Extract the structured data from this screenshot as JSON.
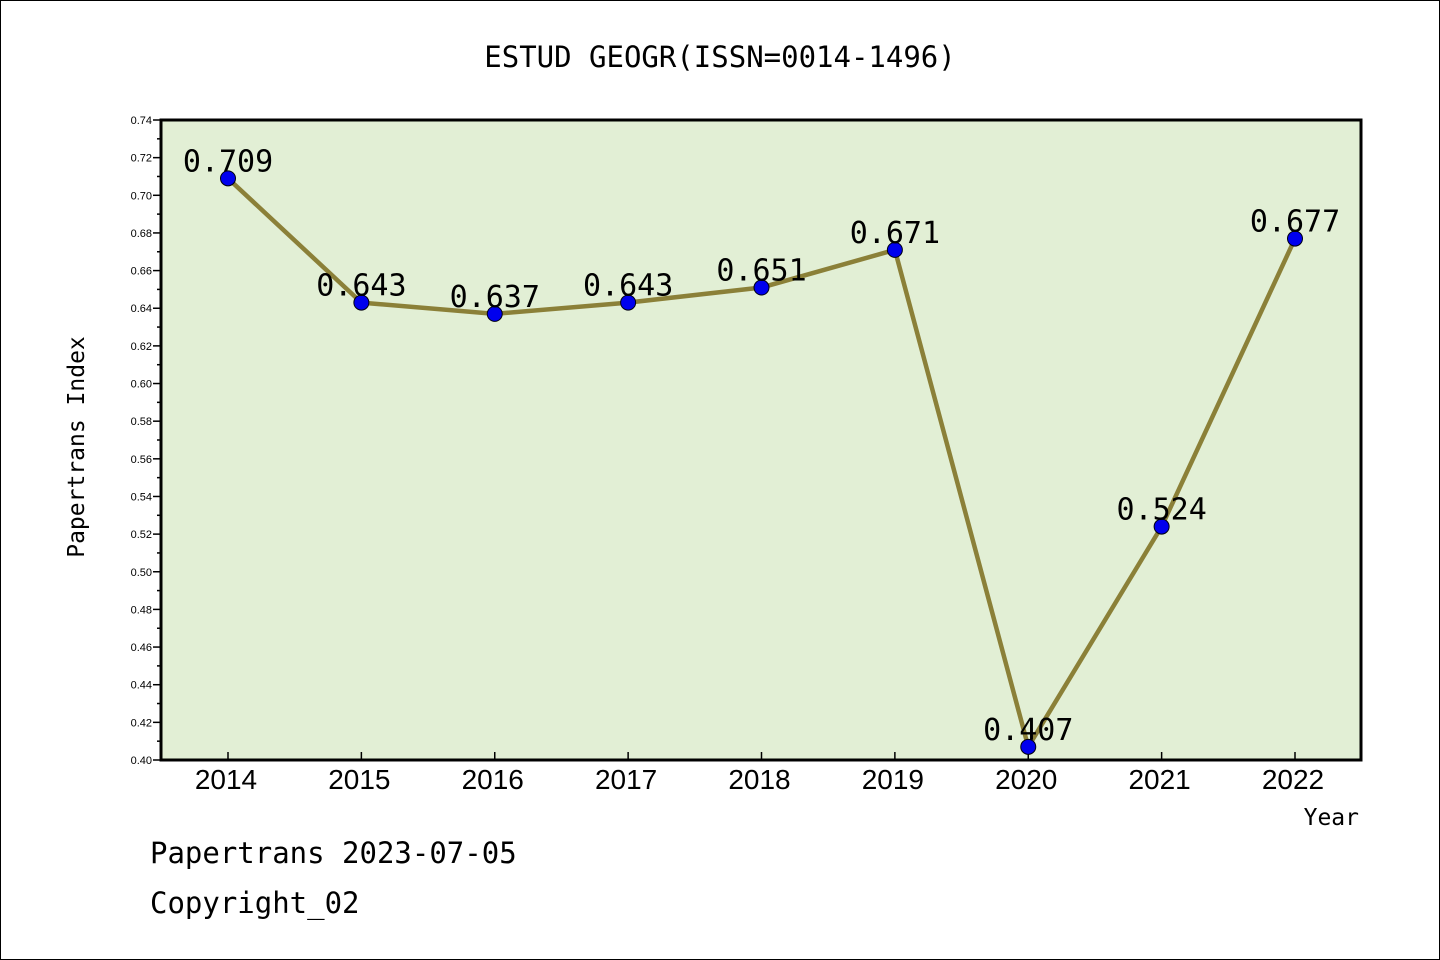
{
  "chart_data": {
    "type": "line",
    "title": "ESTUD GEOGR(ISSN=0014-1496)",
    "xlabel": "Year",
    "ylabel": "Papertrans Index",
    "categories": [
      "2014",
      "2015",
      "2016",
      "2017",
      "2018",
      "2019",
      "2020",
      "2021",
      "2022"
    ],
    "series": [
      {
        "values": [
          0.709,
          0.643,
          0.637,
          0.643,
          0.651,
          0.671,
          0.407,
          0.524,
          0.677
        ],
        "data_labels": [
          "0.709",
          "0.643",
          "0.637",
          "0.643",
          "0.651",
          "0.671",
          "0.407",
          "0.524",
          "0.677"
        ]
      }
    ],
    "ylim": [
      0.4,
      0.74
    ],
    "yticks": [
      "0.40",
      "0.42",
      "0.44",
      "0.46",
      "0.48",
      "0.50",
      "0.52",
      "0.54",
      "0.56",
      "0.58",
      "0.60",
      "0.62",
      "0.64",
      "0.66",
      "0.68",
      "0.70",
      "0.72",
      "0.74"
    ],
    "grid": false,
    "colors": {
      "plot_background": "#e2efd5",
      "line": "#8b8038",
      "marker": "#0000ee"
    }
  },
  "footer": {
    "line1": "Papertrans 2023-07-05",
    "line2": "Copyright_02"
  }
}
